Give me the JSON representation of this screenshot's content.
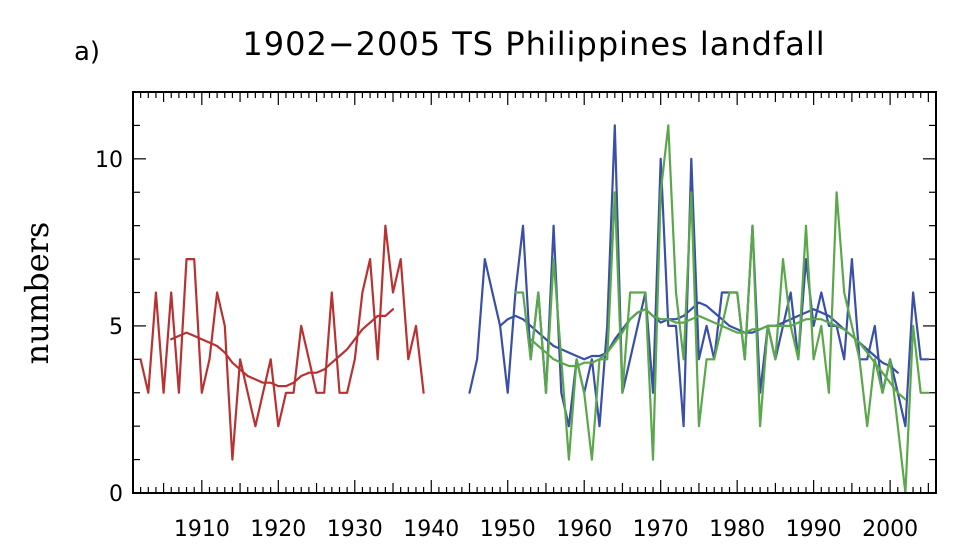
{
  "chart_data": {
    "type": "line",
    "panel_label": "a)",
    "title": "1902−2005 TS Philippines landfall",
    "xlabel": "",
    "ylabel": "numbers",
    "xlim": [
      1901,
      2006
    ],
    "ylim": [
      0,
      12
    ],
    "x_ticks": [
      1910,
      1920,
      1930,
      1940,
      1950,
      1960,
      1970,
      1980,
      1990,
      2000
    ],
    "y_ticks": [
      0,
      5,
      10
    ],
    "grid": false,
    "legend": "none",
    "colors": {
      "red": "#b83232",
      "blue": "#3a4fa8",
      "green": "#5aa84a"
    },
    "series": [
      {
        "color": "#b83232",
        "x": [
          1902,
          1903,
          1904,
          1905,
          1906,
          1907,
          1908,
          1909,
          1910,
          1911,
          1912,
          1913,
          1914,
          1915,
          1916,
          1917,
          1918,
          1919,
          1920,
          1921,
          1922,
          1923,
          1924,
          1925,
          1926,
          1927,
          1928,
          1929,
          1930,
          1931,
          1932,
          1933,
          1934,
          1935,
          1936,
          1937,
          1938,
          1939
        ],
        "values": [
          4,
          3,
          6,
          3,
          6,
          3,
          7,
          7,
          3,
          4,
          6,
          5,
          1,
          4,
          3,
          2,
          3,
          4,
          2,
          3,
          3,
          5,
          4,
          3,
          3,
          6,
          3,
          3,
          4,
          6,
          7,
          4,
          8,
          6,
          7,
          4,
          5,
          3
        ]
      },
      {
        "color": "#b83232",
        "x": [
          1906,
          1907,
          1908,
          1909,
          1910,
          1911,
          1912,
          1913,
          1914,
          1915,
          1916,
          1917,
          1918,
          1919,
          1920,
          1921,
          1922,
          1923,
          1924,
          1925,
          1926,
          1927,
          1928,
          1929,
          1930,
          1931,
          1932,
          1933,
          1934,
          1935
        ],
        "values": [
          4.6,
          4.7,
          4.8,
          4.7,
          4.6,
          4.5,
          4.4,
          4.2,
          3.9,
          3.7,
          3.5,
          3.4,
          3.3,
          3.3,
          3.2,
          3.2,
          3.3,
          3.5,
          3.6,
          3.6,
          3.7,
          3.9,
          4.1,
          4.3,
          4.6,
          4.9,
          5.1,
          5.3,
          5.3,
          5.5
        ]
      },
      {
        "color": "#3a4fa8",
        "x": [
          1945,
          1946,
          1947,
          1948,
          1949,
          1950,
          1951,
          1952,
          1953,
          1954,
          1955,
          1956,
          1957,
          1958,
          1959,
          1960,
          1961,
          1962,
          1963,
          1964,
          1965,
          1966,
          1967,
          1968,
          1969,
          1970,
          1971,
          1972,
          1973,
          1974,
          1975,
          1976,
          1977,
          1978,
          1979,
          1980,
          1981,
          1982,
          1983,
          1984,
          1985,
          1986,
          1987,
          1988,
          1989,
          1990,
          1991,
          1992,
          1993,
          1994,
          1995,
          1996,
          1997,
          1998,
          1999,
          2000,
          2001,
          2002,
          2003,
          2004,
          2005
        ],
        "values": [
          3,
          4,
          7,
          6,
          5,
          3,
          6,
          8,
          4,
          6,
          3,
          8,
          3,
          2,
          4,
          3,
          4,
          2,
          5,
          11,
          3,
          4,
          5,
          6,
          3,
          10,
          5,
          5,
          2,
          10,
          4,
          5,
          4,
          6,
          6,
          6,
          4,
          8,
          3,
          5,
          4,
          5,
          6,
          4,
          7,
          5,
          6,
          5,
          5,
          4,
          7,
          4,
          4,
          5,
          3,
          4,
          3,
          2,
          6,
          4,
          4
        ]
      },
      {
        "color": "#3a4fa8",
        "x": [
          1949,
          1950,
          1951,
          1952,
          1953,
          1954,
          1955,
          1956,
          1957,
          1958,
          1959,
          1960,
          1961,
          1962,
          1963,
          1964,
          1965,
          1966,
          1967,
          1968,
          1969,
          1970,
          1971,
          1972,
          1973,
          1974,
          1975,
          1976,
          1977,
          1978,
          1979,
          1980,
          1981,
          1982,
          1983,
          1984,
          1985,
          1986,
          1987,
          1988,
          1989,
          1990,
          1991,
          1992,
          1993,
          1994,
          1995,
          1996,
          1997,
          1998,
          1999,
          2000,
          2001
        ],
        "values": [
          5.0,
          5.2,
          5.3,
          5.2,
          5.0,
          4.8,
          4.6,
          4.4,
          4.3,
          4.2,
          4.1,
          4.0,
          4.1,
          4.1,
          4.2,
          4.6,
          4.9,
          5.2,
          5.4,
          5.5,
          5.3,
          5.1,
          5.2,
          5.2,
          5.3,
          5.5,
          5.7,
          5.6,
          5.4,
          5.2,
          5.0,
          4.9,
          4.8,
          4.8,
          4.9,
          5.0,
          5.0,
          5.1,
          5.2,
          5.3,
          5.4,
          5.5,
          5.4,
          5.3,
          5.1,
          4.9,
          4.7,
          4.5,
          4.3,
          4.1,
          3.9,
          3.8,
          3.6
        ]
      },
      {
        "color": "#5aa84a",
        "x": [
          1951,
          1952,
          1953,
          1954,
          1955,
          1956,
          1957,
          1958,
          1959,
          1960,
          1961,
          1962,
          1963,
          1964,
          1965,
          1966,
          1967,
          1968,
          1969,
          1970,
          1971,
          1972,
          1973,
          1974,
          1975,
          1976,
          1977,
          1978,
          1979,
          1980,
          1981,
          1982,
          1983,
          1984,
          1985,
          1986,
          1987,
          1988,
          1989,
          1990,
          1991,
          1992,
          1993,
          1994,
          1995,
          1996,
          1997,
          1998,
          1999,
          2000,
          2001,
          2002,
          2003,
          2004,
          2005
        ],
        "values": [
          6,
          6,
          4,
          6,
          3,
          7,
          4,
          1,
          4,
          3,
          1,
          4,
          4,
          9,
          3,
          6,
          6,
          6,
          1,
          9,
          11,
          6,
          4,
          9,
          2,
          4,
          4,
          5,
          6,
          6,
          4,
          8,
          2,
          5,
          4,
          7,
          5,
          4,
          8,
          4,
          5,
          3,
          9,
          6,
          5,
          4,
          2,
          4,
          3,
          4,
          2,
          0,
          5,
          3,
          3
        ]
      },
      {
        "color": "#5aa84a",
        "x": [
          1953,
          1954,
          1955,
          1956,
          1957,
          1958,
          1959,
          1960,
          1961,
          1962,
          1963,
          1964,
          1965,
          1966,
          1967,
          1968,
          1969,
          1970,
          1971,
          1972,
          1973,
          1974,
          1975,
          1976,
          1977,
          1978,
          1979,
          1980,
          1981,
          1982,
          1983,
          1984,
          1985,
          1986,
          1987,
          1988,
          1989,
          1990,
          1991,
          1992,
          1993,
          1994,
          1995,
          1996,
          1997,
          1998,
          1999,
          2000,
          2001,
          2002
        ],
        "values": [
          4.6,
          4.4,
          4.2,
          4.0,
          3.9,
          3.8,
          3.8,
          3.9,
          3.9,
          4.0,
          4.2,
          4.5,
          4.8,
          5.2,
          5.4,
          5.5,
          5.3,
          5.2,
          5.2,
          5.1,
          5.1,
          5.2,
          5.3,
          5.2,
          5.1,
          5.0,
          4.9,
          4.8,
          4.8,
          4.9,
          4.9,
          5.0,
          5.0,
          5.0,
          5.0,
          5.1,
          5.2,
          5.2,
          5.2,
          5.1,
          5.0,
          4.9,
          4.7,
          4.5,
          4.2,
          3.9,
          3.6,
          3.3,
          3.0,
          2.8
        ]
      }
    ]
  }
}
